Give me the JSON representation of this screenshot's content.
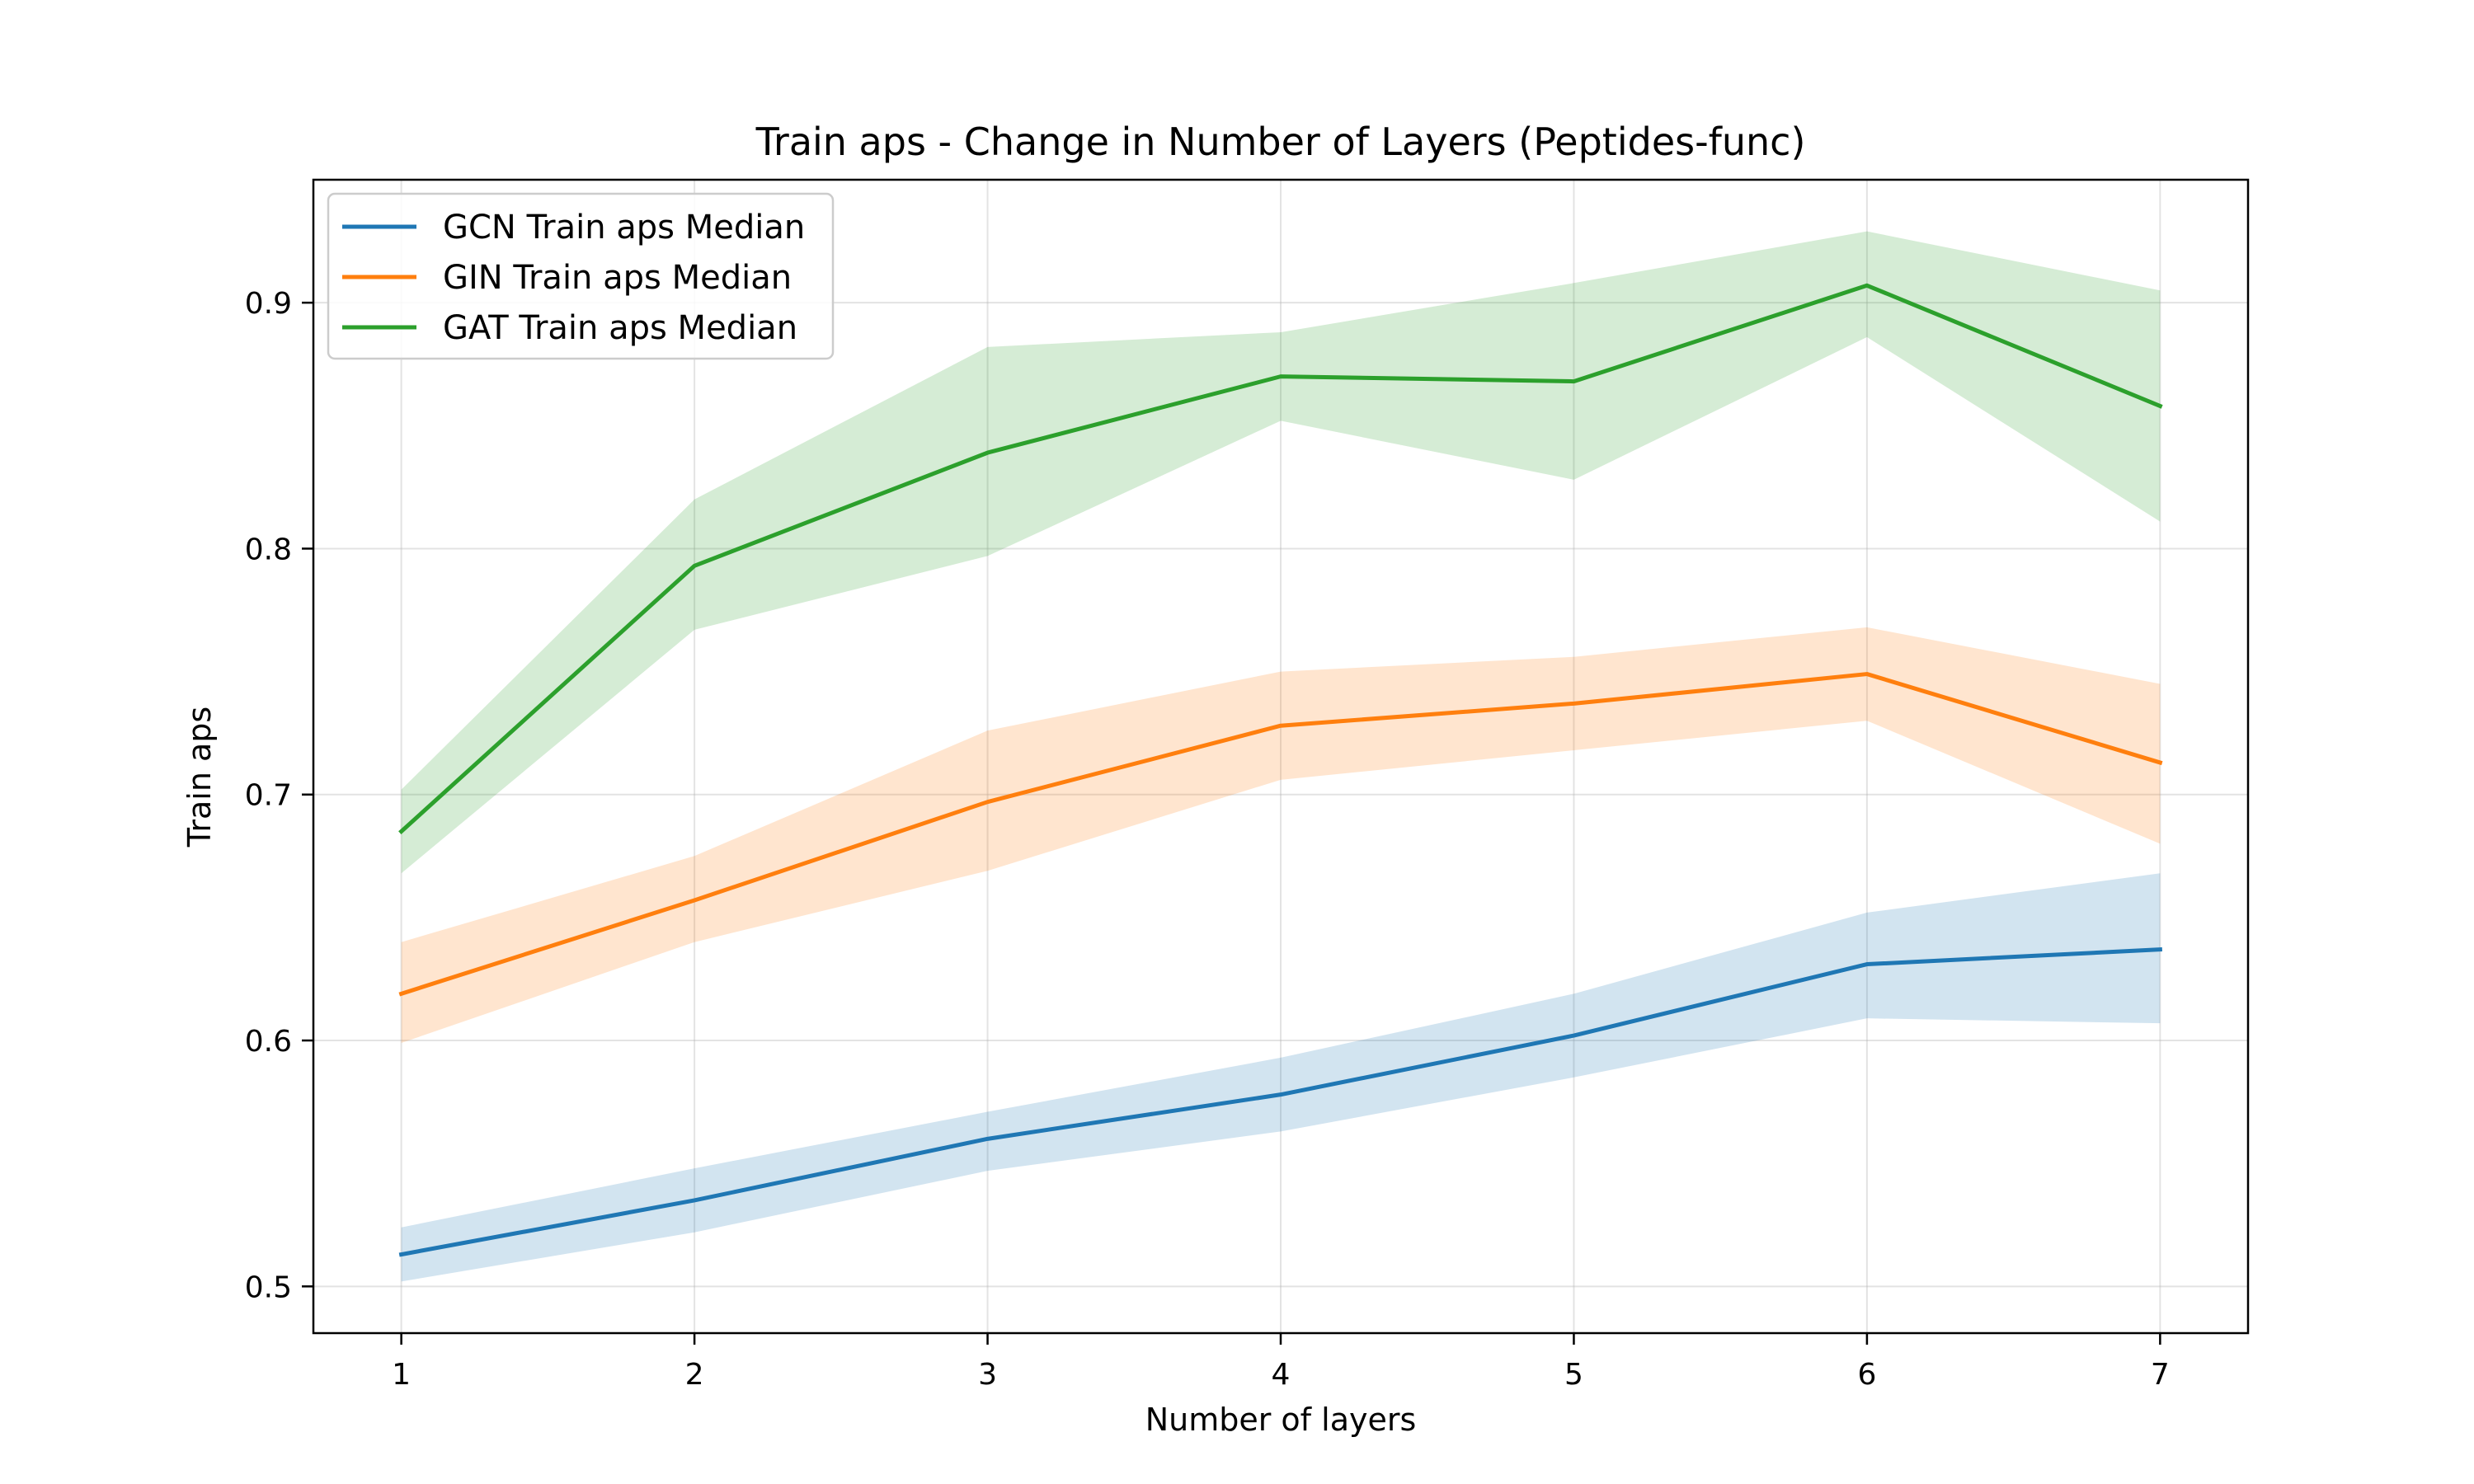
{
  "chart_data": {
    "type": "line",
    "title": "Train aps - Change in Number of Layers (Peptides-func)",
    "xlabel": "Number of layers",
    "ylabel": "Train aps",
    "x": [
      1,
      2,
      3,
      4,
      5,
      6,
      7
    ],
    "xticks": [
      1,
      2,
      3,
      4,
      5,
      6,
      7
    ],
    "xtick_labels": [
      "1",
      "2",
      "3",
      "4",
      "5",
      "6",
      "7"
    ],
    "xlim": [
      0.7,
      7.3
    ],
    "yticks": [
      0.5,
      0.6,
      0.7,
      0.8,
      0.9
    ],
    "ytick_labels": [
      "0.5",
      "0.6",
      "0.7",
      "0.8",
      "0.9"
    ],
    "ylim": [
      0.481,
      0.95
    ],
    "grid": true,
    "legend_position": "top-left",
    "series": [
      {
        "name": "GCN Train aps Median",
        "color": "#1f77b4",
        "band_color": "#1f77b4",
        "values": [
          0.513,
          0.535,
          0.56,
          0.578,
          0.602,
          0.631,
          0.637
        ],
        "lower": [
          0.502,
          0.522,
          0.547,
          0.563,
          0.585,
          0.609,
          0.607
        ],
        "upper": [
          0.524,
          0.548,
          0.571,
          0.593,
          0.619,
          0.652,
          0.668
        ]
      },
      {
        "name": "GIN Train aps Median",
        "color": "#ff7f0e",
        "band_color": "#ff7f0e",
        "values": [
          0.619,
          0.657,
          0.697,
          0.728,
          0.737,
          0.749,
          0.713
        ],
        "lower": [
          0.599,
          0.64,
          0.669,
          0.706,
          0.718,
          0.73,
          0.68
        ],
        "upper": [
          0.64,
          0.675,
          0.726,
          0.75,
          0.756,
          0.768,
          0.745
        ]
      },
      {
        "name": "GAT Train aps Median",
        "color": "#2ca02c",
        "band_color": "#2ca02c",
        "values": [
          0.685,
          0.793,
          0.839,
          0.87,
          0.868,
          0.907,
          0.858
        ],
        "lower": [
          0.668,
          0.767,
          0.797,
          0.852,
          0.828,
          0.886,
          0.811
        ],
        "upper": [
          0.702,
          0.82,
          0.882,
          0.888,
          0.908,
          0.929,
          0.905
        ]
      }
    ]
  }
}
